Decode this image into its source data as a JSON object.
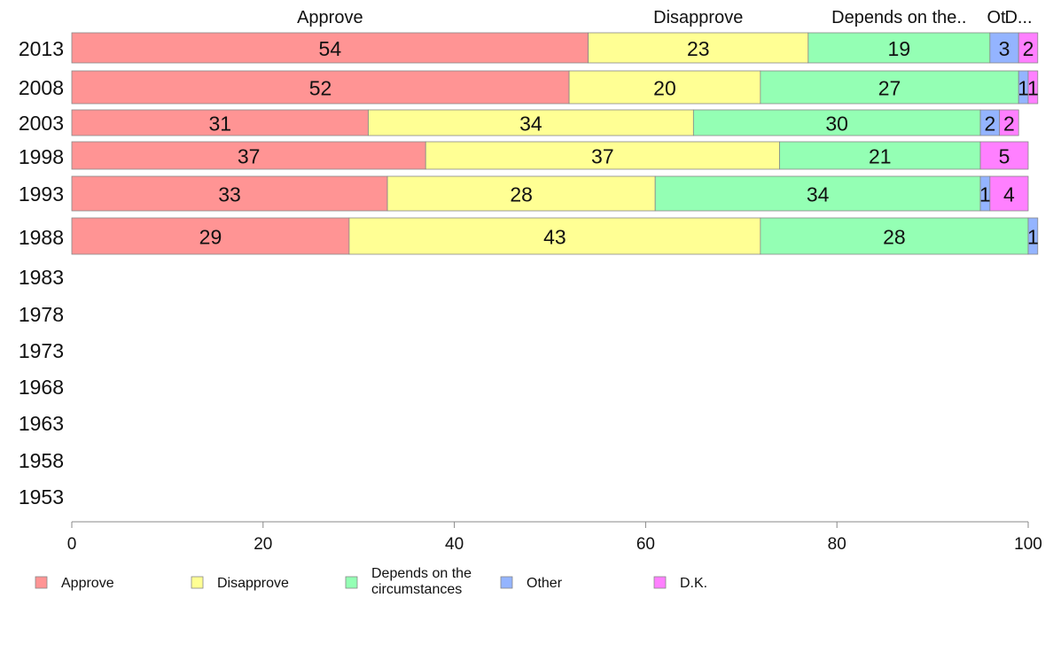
{
  "chart_data": {
    "type": "bar",
    "orientation": "horizontal",
    "stacked": true,
    "categories": [
      "2013",
      "2008",
      "2003",
      "1998",
      "1993",
      "1988",
      "1983",
      "1978",
      "1973",
      "1968",
      "1963",
      "1958",
      "1953"
    ],
    "column_headers": [
      "Approve",
      "Disapprove",
      "Depends on the..",
      "Ot",
      "D..."
    ],
    "series": [
      {
        "name": "Approve",
        "color": "#ff9494",
        "values": [
          54,
          52,
          31,
          37,
          33,
          29,
          null,
          null,
          null,
          null,
          null,
          null,
          null
        ]
      },
      {
        "name": "Disapprove",
        "color": "#ffff94",
        "values": [
          23,
          20,
          34,
          37,
          28,
          43,
          null,
          null,
          null,
          null,
          null,
          null,
          null
        ]
      },
      {
        "name": "Depends on the circumstances",
        "color": "#94ffb4",
        "values": [
          19,
          27,
          30,
          21,
          34,
          28,
          null,
          null,
          null,
          null,
          null,
          null,
          null
        ]
      },
      {
        "name": "Other",
        "color": "#94b4ff",
        "values": [
          3,
          1,
          2,
          0,
          1,
          1,
          null,
          null,
          null,
          null,
          null,
          null,
          null
        ]
      },
      {
        "name": "D.K.",
        "color": "#ff80ff",
        "values": [
          2,
          1,
          2,
          5,
          4,
          0,
          null,
          null,
          null,
          null,
          null,
          null,
          null
        ]
      }
    ],
    "xlim": [
      0,
      100
    ],
    "xticks": [
      0,
      20,
      40,
      60,
      80,
      100
    ],
    "grid": false,
    "legend_position": "bottom"
  },
  "legend": {
    "lines": [
      [
        "Approve"
      ],
      [
        "Disapprove"
      ],
      [
        "Depends on the",
        "circumstances"
      ],
      [
        "Other"
      ],
      [
        "D.K."
      ]
    ]
  }
}
